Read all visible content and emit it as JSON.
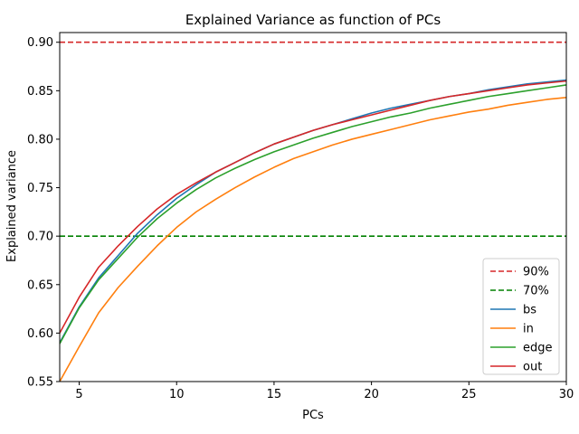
{
  "chart_data": {
    "type": "line",
    "title": "Explained Variance as function of PCs",
    "xlabel": "PCs",
    "ylabel": "Explained variance",
    "xlim": [
      4,
      30
    ],
    "ylim": [
      0.55,
      0.91
    ],
    "xticks": [
      5,
      10,
      15,
      20,
      25,
      30
    ],
    "xtick_labels": [
      "5",
      "10",
      "15",
      "20",
      "25",
      "30"
    ],
    "yticks": [
      0.55,
      0.6,
      0.65,
      0.7,
      0.75,
      0.8,
      0.85,
      0.9
    ],
    "ytick_labels": [
      "0.55",
      "0.60",
      "0.65",
      "0.70",
      "0.75",
      "0.80",
      "0.85",
      "0.90"
    ],
    "grid": false,
    "legend_position": "lower-right",
    "hlines": [
      {
        "name": "90%",
        "y": 0.9,
        "color": "#d62728",
        "dashed": true
      },
      {
        "name": "70%",
        "y": 0.7,
        "color": "#008000",
        "dashed": true
      }
    ],
    "x": [
      4,
      5,
      6,
      7,
      8,
      9,
      10,
      11,
      12,
      13,
      14,
      15,
      16,
      17,
      18,
      19,
      20,
      21,
      22,
      23,
      24,
      25,
      26,
      27,
      28,
      29,
      30
    ],
    "series": [
      {
        "name": "bs",
        "color": "#1f77b4",
        "values": [
          0.59,
          0.627,
          0.657,
          0.68,
          0.703,
          0.722,
          0.739,
          0.753,
          0.766,
          0.776,
          0.786,
          0.795,
          0.802,
          0.809,
          0.815,
          0.821,
          0.827,
          0.832,
          0.836,
          0.84,
          0.844,
          0.847,
          0.851,
          0.854,
          0.857,
          0.859,
          0.861
        ]
      },
      {
        "name": "in",
        "color": "#ff7f0e",
        "values": [
          0.55,
          0.586,
          0.621,
          0.647,
          0.669,
          0.69,
          0.709,
          0.725,
          0.738,
          0.75,
          0.761,
          0.771,
          0.78,
          0.787,
          0.794,
          0.8,
          0.805,
          0.81,
          0.815,
          0.82,
          0.824,
          0.828,
          0.831,
          0.835,
          0.838,
          0.841,
          0.843
        ]
      },
      {
        "name": "edge",
        "color": "#2ca02c",
        "values": [
          0.589,
          0.626,
          0.655,
          0.677,
          0.699,
          0.718,
          0.734,
          0.748,
          0.76,
          0.77,
          0.779,
          0.787,
          0.794,
          0.801,
          0.807,
          0.813,
          0.818,
          0.823,
          0.827,
          0.832,
          0.836,
          0.84,
          0.844,
          0.847,
          0.85,
          0.853,
          0.856
        ]
      },
      {
        "name": "out",
        "color": "#d62728",
        "values": [
          0.6,
          0.637,
          0.668,
          0.69,
          0.71,
          0.728,
          0.743,
          0.755,
          0.766,
          0.776,
          0.786,
          0.795,
          0.802,
          0.809,
          0.815,
          0.82,
          0.825,
          0.83,
          0.835,
          0.84,
          0.844,
          0.847,
          0.85,
          0.853,
          0.856,
          0.858,
          0.86
        ]
      }
    ]
  }
}
